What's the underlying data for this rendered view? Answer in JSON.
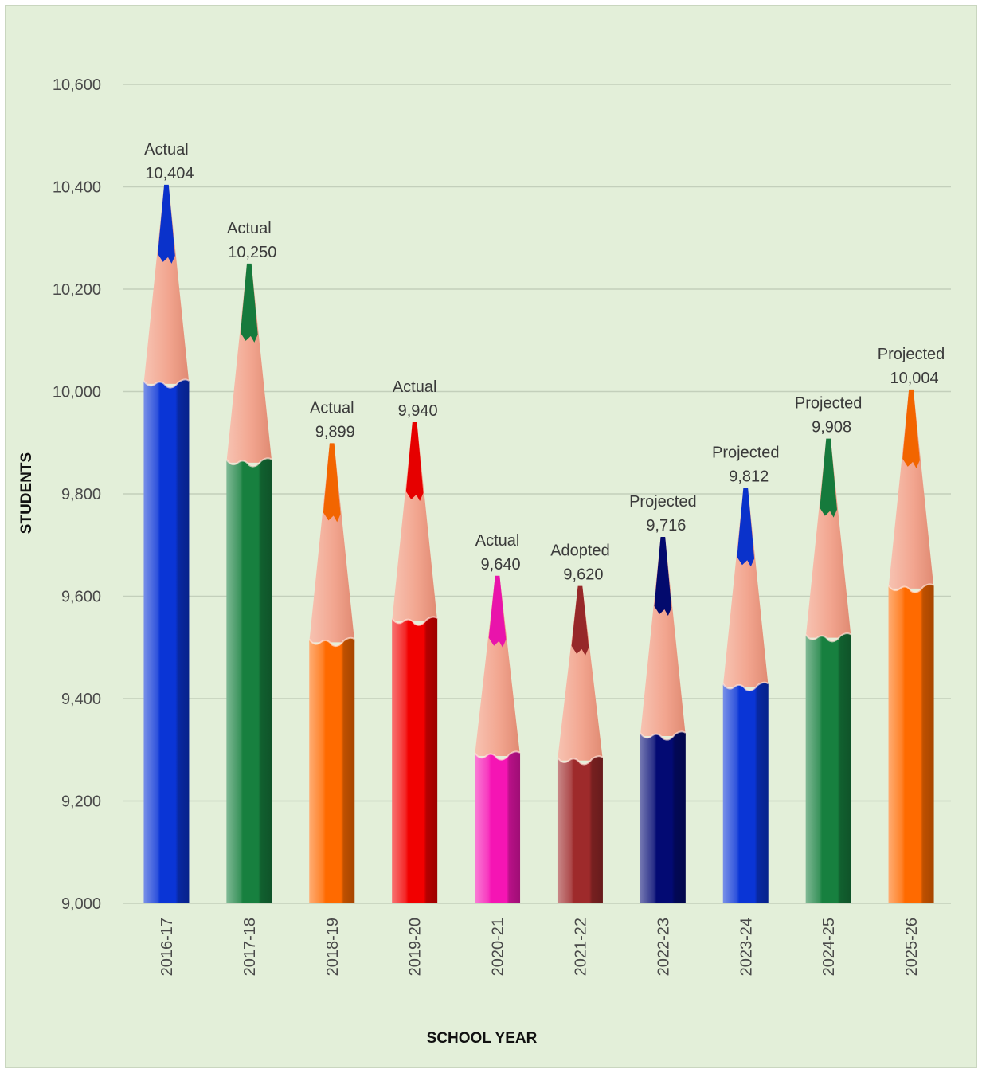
{
  "chart_data": {
    "type": "bar",
    "title": "",
    "xlabel": "SCHOOL YEAR",
    "ylabel": "STUDENTS",
    "ylim": [
      9000,
      10600
    ],
    "yticks": [
      9000,
      9200,
      9400,
      9600,
      9800,
      10000,
      10200,
      10400,
      10600
    ],
    "ytick_labels": [
      "9,000",
      "9,200",
      "9,400",
      "9,600",
      "9,800",
      "10,000",
      "10,200",
      "10,400",
      "10,600"
    ],
    "grid": true,
    "categories": [
      "2016-17",
      "2017-18",
      "2018-19",
      "2019-20",
      "2020-21",
      "2021-22",
      "2022-23",
      "2023-24",
      "2024-25",
      "2025-26"
    ],
    "values": [
      10404,
      10250,
      9899,
      9940,
      9640,
      9620,
      9716,
      9812,
      9908,
      10004
    ],
    "status": [
      "Actual",
      "Actual",
      "Actual",
      "Actual",
      "Actual",
      "Adopted",
      "Projected",
      "Projected",
      "Projected",
      "Projected"
    ],
    "value_labels": [
      "10,404",
      "10,250",
      "9,899",
      "9,940",
      "9,640",
      "9,620",
      "9,716",
      "9,812",
      "9,908",
      "10,004"
    ],
    "colors": [
      "#0a35d6",
      "#17803f",
      "#ff6a00",
      "#f20000",
      "#f515b4",
      "#9e2a2b",
      "#030a73",
      "#0a35d6",
      "#17803f",
      "#ff6a00"
    ]
  }
}
